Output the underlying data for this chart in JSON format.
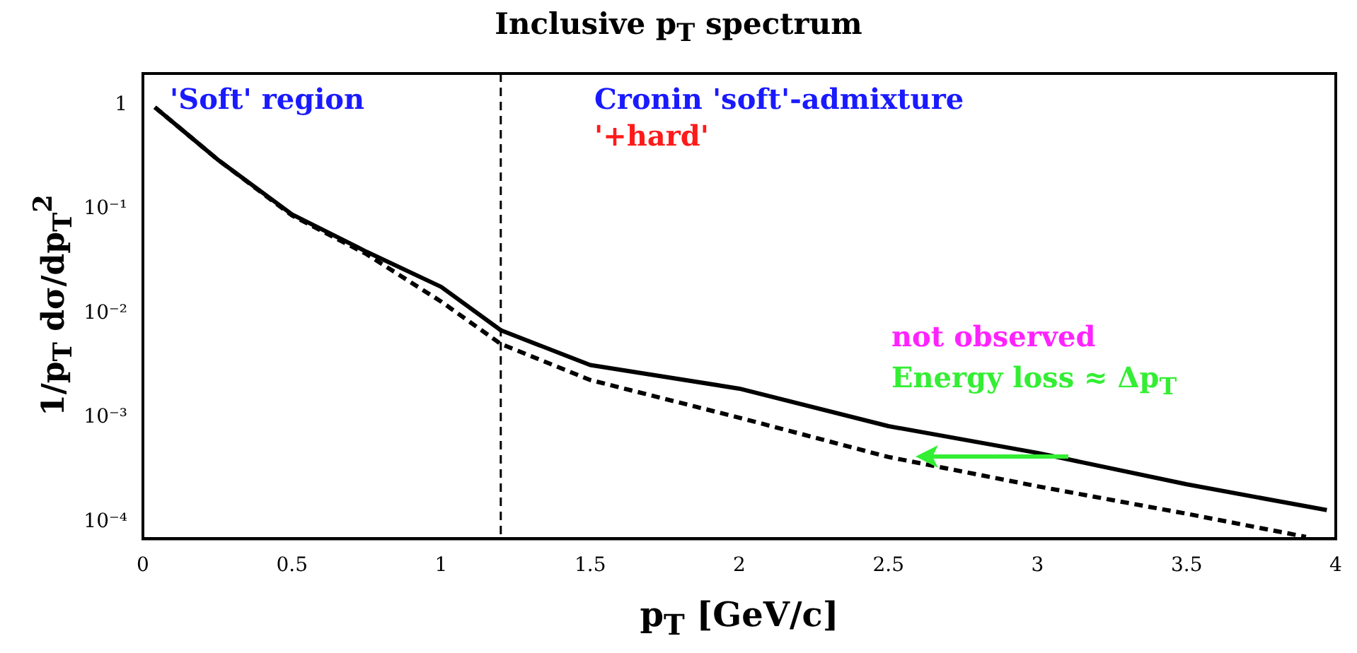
{
  "chart_data": {
    "type": "line",
    "title": "Inclusive p$_{T}$ spectrum",
    "xlabel": "p$_{T}$ [GeV/c]",
    "ylabel": "1/p$_{T}$ dσ/dp$_{T}$$^{2}$",
    "log": "y",
    "grid": false,
    "legend": false,
    "marker": "none",
    "xlim": [
      0,
      4
    ],
    "xticks": [
      0,
      0.5,
      1,
      1.5,
      2,
      2.5,
      3,
      3.5,
      4
    ],
    "ylim": [
      6.9e-05,
      2.0
    ],
    "yticks": [
      {
        "value": 1,
        "label": "1"
      },
      {
        "value": 0.1,
        "label": "10⁻¹"
      },
      {
        "value": 0.01,
        "label": "10⁻²"
      },
      {
        "value": 0.001,
        "label": "10⁻³"
      },
      {
        "value": 0.0001,
        "label": "10⁻⁴"
      }
    ],
    "series": [
      {
        "color": "#000000",
        "line_style": "solid",
        "x": [
          0.04,
          0.25,
          0.5,
          0.75,
          1,
          1.2,
          1.5,
          2,
          2.5,
          3,
          3.5,
          3.97
        ],
        "values": [
          0.95,
          0.3,
          0.089,
          0.039,
          0.018,
          0.0069,
          0.0032,
          0.0019,
          0.00083,
          0.00046,
          0.00023,
          0.00013
        ]
      },
      {
        "color": "#000000",
        "line_style": "dashed",
        "x": [
          0.04,
          0.25,
          0.5,
          0.75,
          1,
          1.2,
          1.5,
          2,
          2.5,
          3,
          3.5,
          3.9
        ],
        "values": [
          0.95,
          0.3,
          0.087,
          0.037,
          0.013,
          0.0051,
          0.0023,
          0.001,
          0.00042,
          0.00022,
          0.00012,
          7.2e-05
        ]
      }
    ],
    "ref_lines": [
      {
        "axis": "x",
        "value": 1.2,
        "color": "#000000",
        "line_style": "dashed"
      }
    ],
    "annotations": [
      "'Soft' region",
      "Cronin 'soft'-admixture",
      "'+hard'",
      "not observed",
      "Energy loss ≈ Δp$_{T}$"
    ]
  }
}
